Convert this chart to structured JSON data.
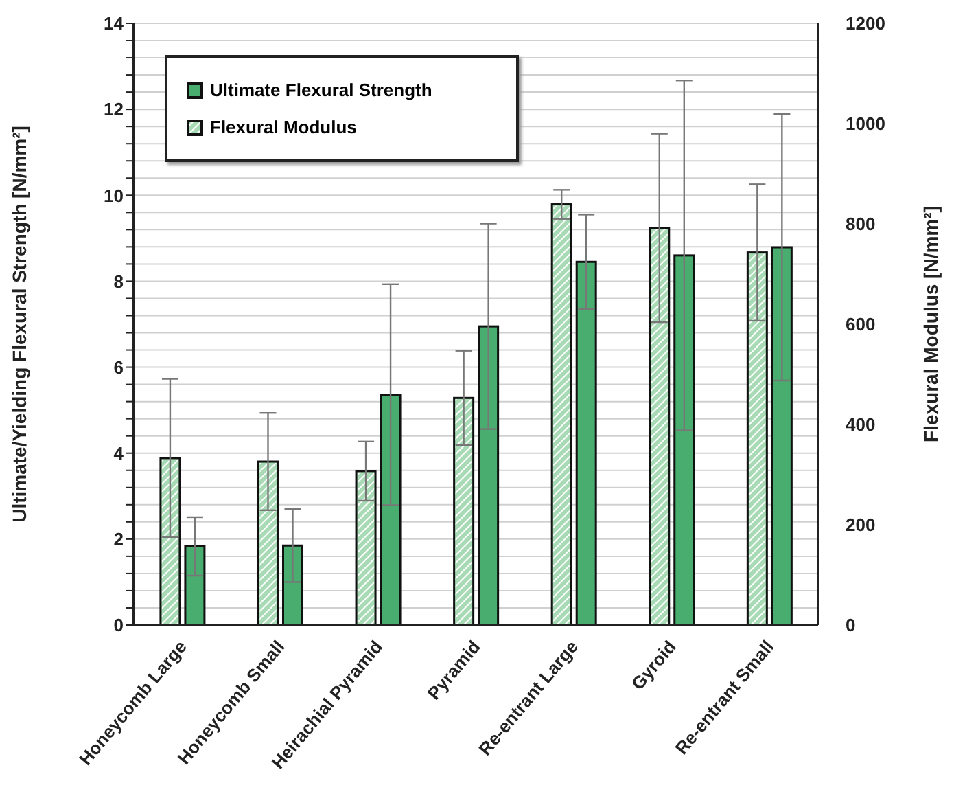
{
  "chart_data": {
    "type": "bar",
    "categories": [
      "Honeycomb Large",
      "Honeycomb Small",
      "Heirachial Pyramid",
      "Pyramid",
      "Re-entrant Large",
      "Gyroid",
      "Re-entrant Small"
    ],
    "ylabel": "Ultimate/Yielding Flexural Strength  [N/mm²]",
    "y2label": "Flexural Modulus  [N/mm²]",
    "series": [
      {
        "name": "Flexural Modulus",
        "color": "#a8dbb5",
        "axis": "y2",
        "values": [
          333,
          326,
          307,
          453,
          839,
          792,
          743
        ],
        "errors": [
          158,
          97,
          59,
          94,
          29,
          188,
          136
        ]
      },
      {
        "name": "Ultimate Flexural Strength",
        "color": "#48ad6e",
        "values": [
          1.83,
          1.85,
          5.36,
          6.95,
          8.45,
          8.6,
          8.79
        ],
        "errors": [
          0.68,
          0.85,
          2.57,
          2.39,
          1.1,
          4.07,
          3.1
        ]
      }
    ],
    "ylim": [
      0,
      14
    ],
    "yticks": [
      0,
      {
        "value": 0.4,
        "label": null
      },
      {
        "value": 0.8,
        "label": null
      },
      {
        "value": 1.2,
        "label": null
      },
      {
        "value": 1.6,
        "label": null
      },
      2,
      {
        "value": 2.4,
        "label": null
      },
      {
        "value": 2.8,
        "label": null
      },
      {
        "value": 3.2,
        "label": null
      },
      {
        "value": 3.6,
        "label": null
      },
      4,
      {
        "value": 4.4,
        "label": null
      },
      {
        "value": 4.8,
        "label": null
      },
      {
        "value": 5.2,
        "label": null
      },
      {
        "value": 5.6,
        "label": null
      },
      6,
      {
        "value": 6.4,
        "label": null
      },
      {
        "value": 6.8,
        "label": null
      },
      {
        "value": 7.2,
        "label": null
      },
      {
        "value": 7.6,
        "label": null
      },
      8,
      {
        "value": 8.4,
        "label": null
      },
      {
        "value": 8.8,
        "label": null
      },
      {
        "value": 9.2,
        "label": null
      },
      {
        "value": 9.6,
        "label": null
      },
      10,
      {
        "value": 10.4,
        "label": null
      },
      {
        "value": 10.8,
        "label": null
      },
      {
        "value": 11.2,
        "label": null
      },
      {
        "value": 11.6,
        "label": null
      },
      12,
      {
        "value": 12.4,
        "label": null
      },
      {
        "value": 12.8,
        "label": null
      },
      {
        "value": 13.2,
        "label": null
      },
      {
        "value": 13.6,
        "label": null
      },
      14
    ],
    "y2lim": [
      0,
      1200
    ],
    "y2ticks": [
      0,
      200,
      400,
      600,
      800,
      1000,
      1200
    ],
    "grid": "y",
    "legend": "top left"
  }
}
